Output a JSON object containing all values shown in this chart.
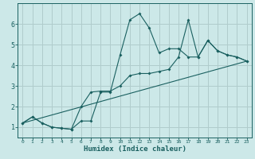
{
  "title": "",
  "xlabel": "Humidex (Indice chaleur)",
  "bg_color": "#cce8e8",
  "grid_color": "#b0cccc",
  "line_color": "#1a6060",
  "xlim": [
    -0.5,
    23.5
  ],
  "ylim": [
    0.5,
    7.0
  ],
  "xticks": [
    0,
    1,
    2,
    3,
    4,
    5,
    6,
    7,
    8,
    9,
    10,
    11,
    12,
    13,
    14,
    15,
    16,
    17,
    18,
    19,
    20,
    21,
    22,
    23
  ],
  "yticks": [
    1,
    2,
    3,
    4,
    5,
    6
  ],
  "line1_x": [
    0,
    1,
    2,
    3,
    4,
    5,
    6,
    7,
    8,
    9,
    10,
    11,
    12,
    13,
    14,
    15,
    16,
    17,
    18,
    19,
    20,
    21,
    22,
    23
  ],
  "line1_y": [
    1.2,
    1.5,
    1.2,
    1.0,
    0.95,
    0.9,
    1.3,
    1.3,
    2.7,
    2.7,
    4.5,
    6.2,
    6.5,
    5.8,
    4.6,
    4.8,
    4.8,
    4.4,
    4.4,
    5.2,
    4.7,
    4.5,
    4.4,
    4.2
  ],
  "line2_x": [
    0,
    1,
    2,
    3,
    4,
    5,
    6,
    7,
    8,
    9,
    10,
    11,
    12,
    13,
    14,
    15,
    16,
    17,
    18,
    19,
    20,
    21,
    22,
    23
  ],
  "line2_y": [
    1.2,
    1.5,
    1.2,
    1.0,
    0.95,
    0.9,
    2.0,
    2.7,
    2.75,
    2.75,
    3.0,
    3.5,
    3.6,
    3.6,
    3.7,
    3.8,
    4.4,
    6.2,
    4.4,
    5.2,
    4.7,
    4.5,
    4.4,
    4.2
  ],
  "line3_x": [
    0,
    23
  ],
  "line3_y": [
    1.2,
    4.2
  ]
}
